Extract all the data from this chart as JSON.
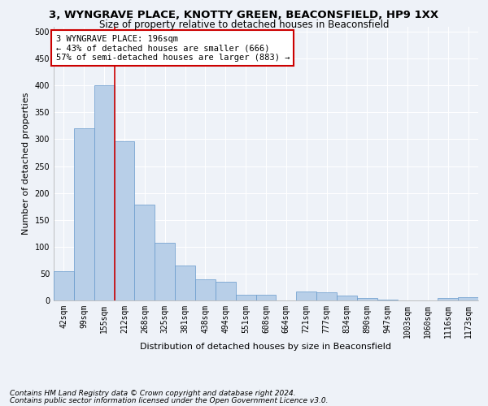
{
  "title1": "3, WYNGRAVE PLACE, KNOTTY GREEN, BEACONSFIELD, HP9 1XX",
  "title2": "Size of property relative to detached houses in Beaconsfield",
  "xlabel": "Distribution of detached houses by size in Beaconsfield",
  "ylabel": "Number of detached properties",
  "footnote1": "Contains HM Land Registry data © Crown copyright and database right 2024.",
  "footnote2": "Contains public sector information licensed under the Open Government Licence v3.0.",
  "bar_labels": [
    "42sqm",
    "99sqm",
    "155sqm",
    "212sqm",
    "268sqm",
    "325sqm",
    "381sqm",
    "438sqm",
    "494sqm",
    "551sqm",
    "608sqm",
    "664sqm",
    "721sqm",
    "777sqm",
    "834sqm",
    "890sqm",
    "947sqm",
    "1003sqm",
    "1060sqm",
    "1116sqm",
    "1173sqm"
  ],
  "bar_values": [
    54,
    320,
    400,
    296,
    178,
    108,
    65,
    40,
    35,
    11,
    11,
    0,
    16,
    15,
    9,
    5,
    1,
    0,
    0,
    5,
    6
  ],
  "bar_color": "#b8cfe8",
  "bar_edge_color": "#6699cc",
  "property_label": "3 WYNGRAVE PLACE: 196sqm",
  "pct_smaller": 43,
  "count_smaller": 666,
  "pct_larger_semi": 57,
  "count_larger_semi": 883,
  "vline_x_index": 2.5,
  "annotation_box_color": "#ffffff",
  "annotation_box_edge": "#cc0000",
  "vline_color": "#cc0000",
  "ylim": [
    0,
    510
  ],
  "yticks": [
    0,
    50,
    100,
    150,
    200,
    250,
    300,
    350,
    400,
    450,
    500
  ],
  "background_color": "#eef2f8",
  "grid_color": "#ffffff",
  "title_fontsize": 9.5,
  "subtitle_fontsize": 8.5,
  "axis_label_fontsize": 8,
  "tick_fontsize": 7,
  "annotation_fontsize": 7.5,
  "footnote_fontsize": 6.5
}
